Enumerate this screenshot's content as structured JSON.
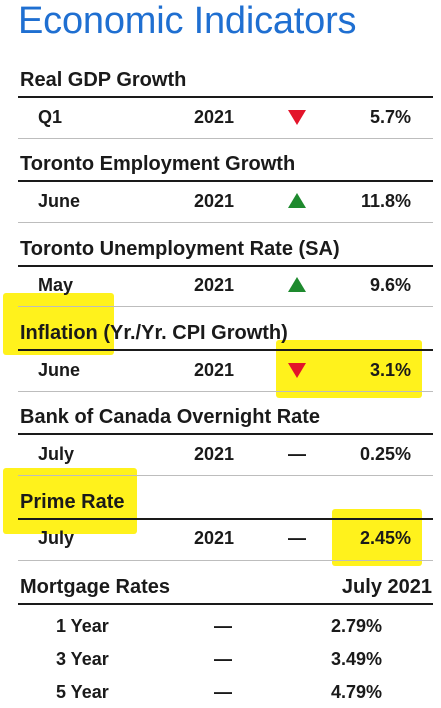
{
  "title": "Economic Indicators",
  "sections": [
    {
      "title": "Real GDP Growth",
      "period": "Q1",
      "year": "2021",
      "indicator": "down",
      "value": "5.7%"
    },
    {
      "title": "Toronto Employment Growth",
      "period": "June",
      "year": "2021",
      "indicator": "up",
      "value": "11.8%"
    },
    {
      "title": "Toronto Unemployment Rate (SA)",
      "period": "May",
      "year": "2021",
      "indicator": "up",
      "value": "9.6%"
    },
    {
      "title_main": "Inflation",
      "title_rest": " (Yr./Yr. CPI Growth)",
      "period": "June",
      "year": "2021",
      "indicator": "down",
      "value": "3.1%"
    },
    {
      "title": "Bank of Canada Overnight Rate",
      "period": "July",
      "year": "2021",
      "indicator": "flat",
      "indicator_text": "—",
      "value": "0.25%"
    },
    {
      "title": "Prime Rate",
      "period": "July",
      "year": "2021",
      "indicator": "flat",
      "indicator_text": "—",
      "value": "2.45%"
    }
  ],
  "mortgage": {
    "title": "Mortgage Rates",
    "date": "July 2021",
    "rows": [
      {
        "term": "1 Year",
        "dash": "—",
        "rate": "2.79%"
      },
      {
        "term": "3 Year",
        "dash": "—",
        "rate": "3.49%"
      },
      {
        "term": "5 Year",
        "dash": "—",
        "rate": "4.79%"
      }
    ]
  },
  "colors": {
    "title": "#1f6fd1",
    "highlight": "#fff21c",
    "down_arrow": "#e3142a",
    "up_arrow": "#1e8a2e"
  },
  "icons": {
    "down": "red-down-triangle-icon",
    "up": "green-up-triangle-icon",
    "flat": "dash-icon"
  }
}
